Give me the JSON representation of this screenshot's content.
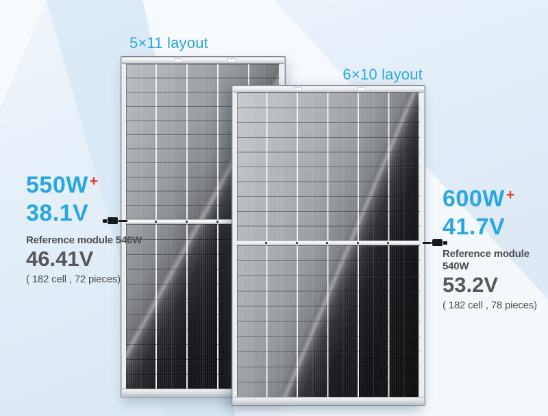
{
  "panels": [
    {
      "layout_label": "5×11 layout",
      "columns": 5,
      "rows": 11,
      "power": "550W",
      "power_plus": "+",
      "voltage": "38.1V",
      "reference_label": "Reference module 540W",
      "reference_voltage": "46.41V",
      "cells_note": "( 182 cell , 72 pieces)"
    },
    {
      "layout_label": "6×10 layout",
      "columns": 6,
      "rows": 10,
      "power": "600W",
      "power_plus": "+",
      "voltage": "41.7V",
      "reference_label": "Reference module 540W",
      "reference_voltage": "53.2V",
      "cells_note": "( 182 cell , 78 pieces)"
    }
  ],
  "icons": {
    "left_marker": "mc4-connector",
    "right_marker": "mc4-connector"
  },
  "colors": {
    "accent_blue": "#2aa7e0",
    "accent_red": "#e6392e",
    "label_gray": "#4d4e51",
    "value_gray": "#56575b",
    "background_blue": "#e2edf8"
  }
}
